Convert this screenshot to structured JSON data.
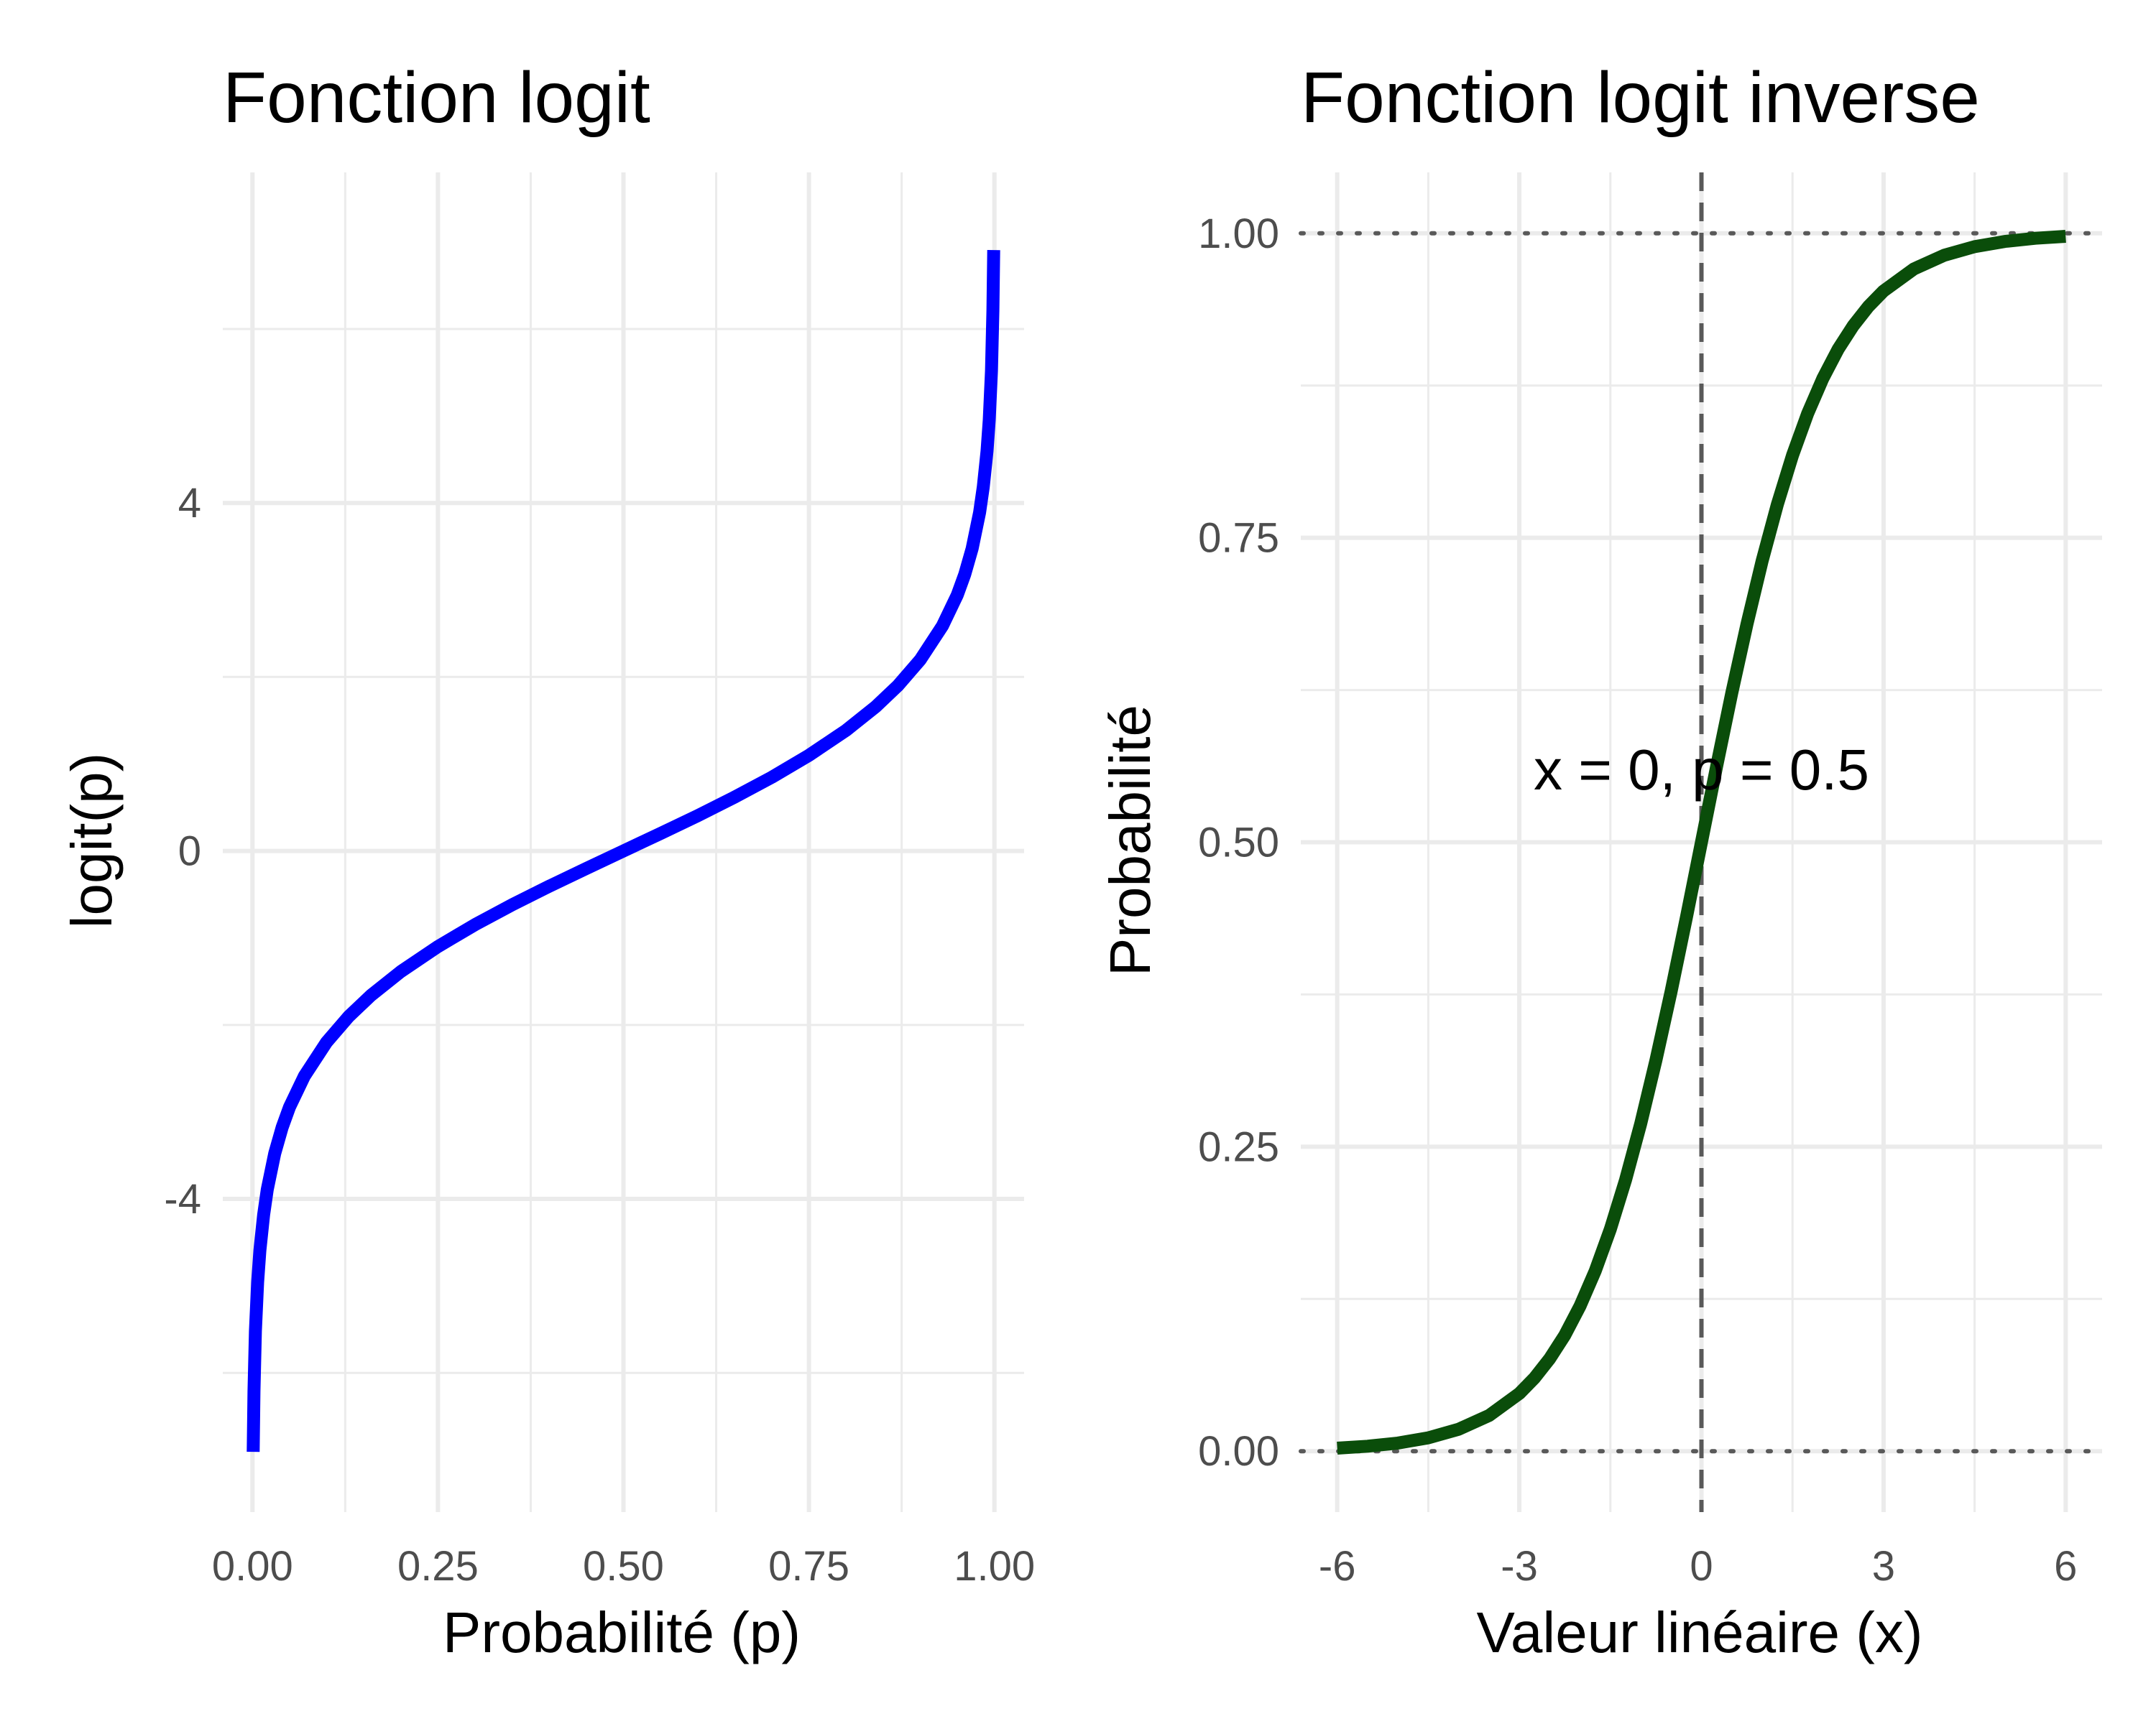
{
  "chart_data": [
    {
      "type": "line",
      "title": "Fonction logit",
      "xlabel": "Probabilité (p)",
      "ylabel": "logit(p)",
      "xlim": [
        -0.04,
        1.04
      ],
      "ylim": [
        -7.6,
        7.8
      ],
      "x_ticks": [
        0,
        0.25,
        0.5,
        0.75,
        1
      ],
      "x_tick_labels": [
        "0.00",
        "0.25",
        "0.50",
        "0.75",
        "1.00"
      ],
      "y_ticks": [
        -4,
        0,
        4
      ],
      "y_tick_labels": [
        "-4",
        "0",
        "4"
      ],
      "grid": true,
      "legend": "none",
      "series": [
        {
          "color": "#0000ff",
          "x": [
            0.001,
            0.002,
            0.004,
            0.007,
            0.01,
            0.015,
            0.02,
            0.03,
            0.04,
            0.05,
            0.07,
            0.1,
            0.13,
            0.16,
            0.2,
            0.25,
            0.3,
            0.35,
            0.4,
            0.45,
            0.5,
            0.55,
            0.6,
            0.65,
            0.7,
            0.75,
            0.8,
            0.84,
            0.87,
            0.9,
            0.93,
            0.95,
            0.96,
            0.97,
            0.98,
            0.985,
            0.99,
            0.993,
            0.996,
            0.998,
            0.999
          ],
          "y": [
            -6.907,
            -6.213,
            -5.517,
            -4.955,
            -4.595,
            -4.185,
            -3.892,
            -3.476,
            -3.178,
            -2.944,
            -2.587,
            -2.197,
            -1.901,
            -1.658,
            -1.386,
            -1.099,
            -0.847,
            -0.619,
            -0.405,
            -0.201,
            0,
            0.201,
            0.405,
            0.619,
            0.847,
            1.099,
            1.386,
            1.658,
            1.901,
            2.197,
            2.587,
            2.944,
            3.178,
            3.476,
            3.892,
            4.185,
            4.595,
            4.955,
            5.517,
            6.213,
            6.907
          ]
        }
      ]
    },
    {
      "type": "line",
      "title": "Fonction logit inverse",
      "xlabel": "Valeur linéaire (x)",
      "ylabel": "Probabilité",
      "xlim": [
        -6.6,
        6.6
      ],
      "ylim": [
        -0.05,
        1.05
      ],
      "x_ticks": [
        -6,
        -3,
        0,
        3,
        6
      ],
      "x_tick_labels": [
        "-6",
        "-3",
        "0",
        "3",
        "6"
      ],
      "y_ticks": [
        0,
        0.25,
        0.5,
        0.75,
        1
      ],
      "y_tick_labels": [
        "0.00",
        "0.25",
        "0.50",
        "0.75",
        "1.00"
      ],
      "grid": true,
      "legend": "none",
      "series": [
        {
          "color": "#0a4d0a",
          "x": [
            -6,
            -5.5,
            -5,
            -4.5,
            -4,
            -3.5,
            -3,
            -2.75,
            -2.5,
            -2.25,
            -2,
            -1.75,
            -1.5,
            -1.25,
            -1,
            -0.75,
            -0.5,
            -0.25,
            0,
            0.25,
            0.5,
            0.75,
            1,
            1.25,
            1.5,
            1.75,
            2,
            2.25,
            2.5,
            2.75,
            3,
            3.5,
            4,
            4.5,
            5,
            5.5,
            6
          ],
          "y": [
            0.0025,
            0.0041,
            0.0067,
            0.011,
            0.018,
            0.0293,
            0.0474,
            0.0601,
            0.0759,
            0.0953,
            0.1192,
            0.148,
            0.1824,
            0.2227,
            0.2689,
            0.3208,
            0.3775,
            0.4378,
            0.5,
            0.5622,
            0.6225,
            0.6792,
            0.7311,
            0.7773,
            0.8176,
            0.852,
            0.8808,
            0.9047,
            0.9241,
            0.9399,
            0.9526,
            0.9707,
            0.982,
            0.989,
            0.9933,
            0.9959,
            0.9975
          ]
        }
      ],
      "reference_lines": [
        {
          "orientation": "horizontal",
          "value": 1,
          "style": "dotted"
        },
        {
          "orientation": "horizontal",
          "value": 0,
          "style": "dotted"
        },
        {
          "orientation": "vertical",
          "value": 0,
          "style": "dashed"
        }
      ],
      "annotations": [
        {
          "text": "x = 0, p = 0.5",
          "x": 0,
          "y": 0.56
        }
      ]
    }
  ]
}
